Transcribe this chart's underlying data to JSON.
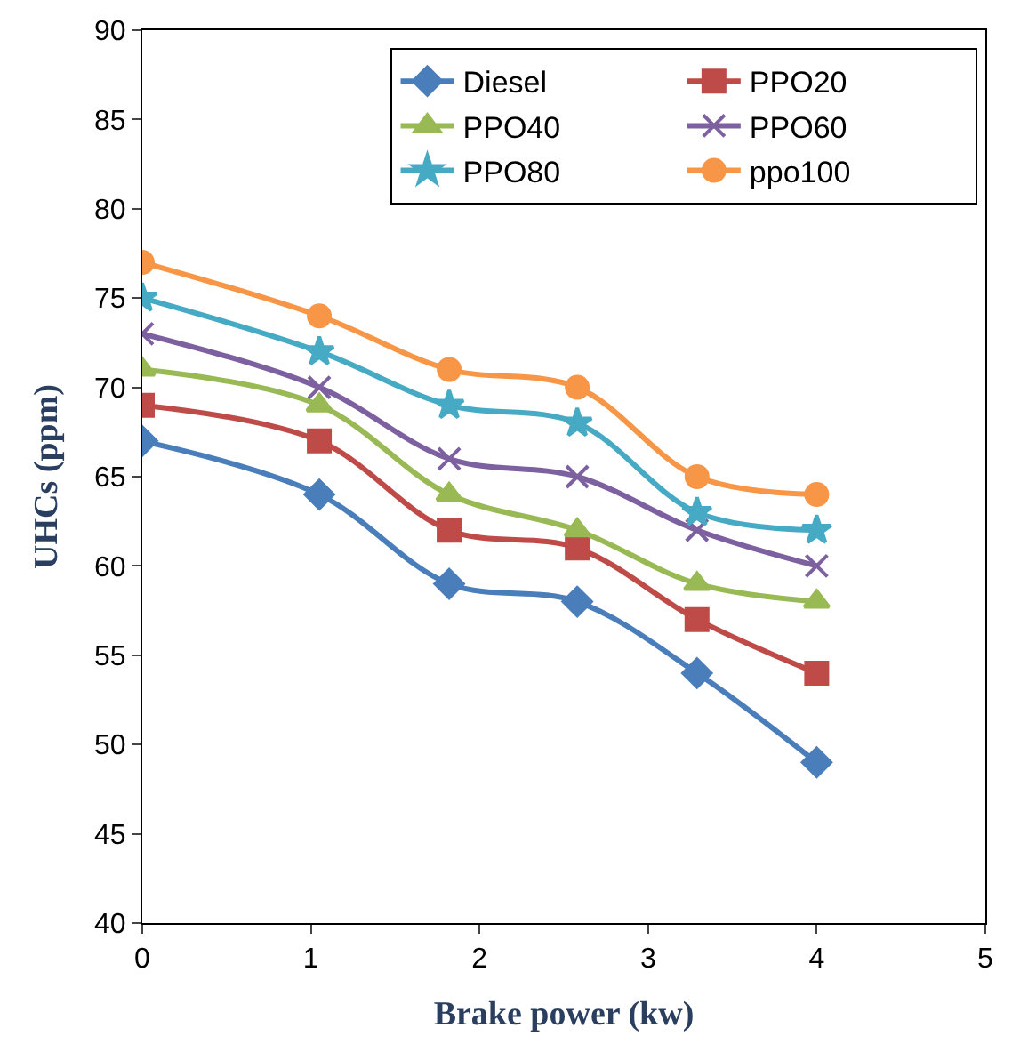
{
  "chart_data": {
    "type": "line",
    "xlabel": "Brake power (kw)",
    "ylabel": "UHCs (ppm)",
    "x": [
      0,
      1.05,
      1.82,
      2.58,
      3.29,
      4
    ],
    "xlim": [
      0,
      5
    ],
    "xticks": [
      0,
      1,
      2,
      3,
      4,
      5
    ],
    "ylim": [
      40,
      90
    ],
    "yticks": [
      40,
      45,
      50,
      55,
      60,
      65,
      70,
      75,
      80,
      85,
      90
    ],
    "grid": false,
    "legend": "top right",
    "line_style": "solid",
    "series": [
      {
        "name": "Diesel",
        "color": "#4a7ebb",
        "marker": "diamond",
        "values": [
          67,
          64,
          59,
          58,
          54,
          49
        ]
      },
      {
        "name": "PPO20",
        "color": "#be4b48",
        "marker": "square",
        "values": [
          69,
          67,
          62,
          61,
          57,
          54
        ]
      },
      {
        "name": "PPO40",
        "color": "#98b954",
        "marker": "triangle",
        "values": [
          71,
          69,
          64,
          62,
          59,
          58
        ]
      },
      {
        "name": "PPO60",
        "color": "#7d60a0",
        "marker": "cross",
        "values": [
          73,
          70,
          66,
          65,
          62,
          60
        ]
      },
      {
        "name": "PPO80",
        "color": "#46aac5",
        "marker": "star",
        "values": [
          75,
          72,
          69,
          68,
          63,
          62
        ]
      },
      {
        "name": "ppo100",
        "color": "#f79646",
        "marker": "circle",
        "values": [
          77,
          74,
          71,
          70,
          65,
          64
        ]
      }
    ]
  }
}
